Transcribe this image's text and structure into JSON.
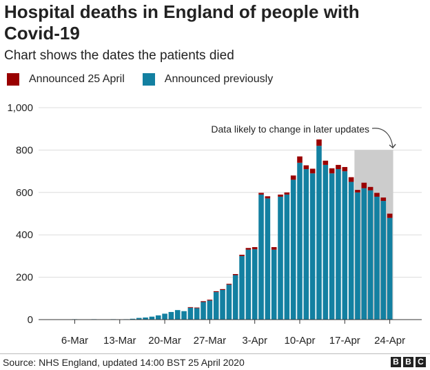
{
  "header": {
    "title": "Hospital deaths in England of people with Covid-19",
    "subtitle": "Chart shows the dates the patients died"
  },
  "footer": {
    "source": "Source: NHS England, updated 14:00 BST 25 April 2020",
    "logo_letters": [
      "B",
      "B",
      "C"
    ]
  },
  "colors": {
    "announced_25_april": "#990000",
    "announced_previously": "#1380a1",
    "highlight_band": "#cccccc"
  },
  "chart_data": {
    "type": "bar",
    "stacked": true,
    "grid": true,
    "legend_position": "top-left",
    "ylim": [
      0,
      1000
    ],
    "yticks": [
      0,
      200,
      400,
      600,
      800,
      1000
    ],
    "ytick_labels": [
      "0",
      "200",
      "400",
      "600",
      "800",
      "1,000"
    ],
    "xtick_labels": [
      "6-Mar",
      "13-Mar",
      "20-Mar",
      "27-Mar",
      "3-Apr",
      "10-Apr",
      "17-Apr",
      "24-Apr"
    ],
    "xtick_categories": [
      "6-Mar",
      "13-Mar",
      "20-Mar",
      "27-Mar",
      "3-Apr",
      "10-Apr",
      "17-Apr",
      "24-Apr"
    ],
    "categories": [
      "1-Mar",
      "2-Mar",
      "3-Mar",
      "4-Mar",
      "5-Mar",
      "6-Mar",
      "7-Mar",
      "8-Mar",
      "9-Mar",
      "10-Mar",
      "11-Mar",
      "12-Mar",
      "13-Mar",
      "14-Mar",
      "15-Mar",
      "16-Mar",
      "17-Mar",
      "18-Mar",
      "19-Mar",
      "20-Mar",
      "21-Mar",
      "22-Mar",
      "23-Mar",
      "24-Mar",
      "25-Mar",
      "26-Mar",
      "27-Mar",
      "28-Mar",
      "29-Mar",
      "30-Mar",
      "31-Mar",
      "1-Apr",
      "2-Apr",
      "3-Apr",
      "4-Apr",
      "5-Apr",
      "6-Apr",
      "7-Apr",
      "8-Apr",
      "9-Apr",
      "10-Apr",
      "11-Apr",
      "12-Apr",
      "13-Apr",
      "14-Apr",
      "15-Apr",
      "16-Apr",
      "17-Apr",
      "18-Apr",
      "19-Apr",
      "20-Apr",
      "21-Apr",
      "22-Apr",
      "23-Apr",
      "24-Apr"
    ],
    "series": [
      {
        "name": "Announced previously",
        "values": [
          0,
          0,
          0,
          0,
          0,
          2,
          1,
          1,
          2,
          0,
          1,
          2,
          0,
          2,
          4,
          8,
          10,
          14,
          20,
          28,
          36,
          45,
          40,
          56,
          54,
          83,
          90,
          130,
          140,
          165,
          210,
          300,
          330,
          332,
          590,
          572,
          330,
          580,
          590,
          660,
          740,
          710,
          690,
          820,
          730,
          690,
          710,
          700,
          650,
          600,
          620,
          610,
          580,
          560,
          480
        ]
      },
      {
        "name": "Announced 25 April",
        "values": [
          0,
          0,
          0,
          0,
          0,
          0,
          0,
          0,
          0,
          0,
          0,
          0,
          0,
          0,
          0,
          0,
          0,
          0,
          0,
          0,
          0,
          0,
          0,
          3,
          3,
          4,
          4,
          4,
          4,
          4,
          5,
          6,
          8,
          10,
          8,
          10,
          12,
          10,
          10,
          20,
          30,
          18,
          22,
          30,
          20,
          24,
          20,
          20,
          22,
          12,
          26,
          16,
          18,
          16,
          20
        ]
      }
    ],
    "annotation": "Data likely to change in later updates",
    "highlight_range": [
      "19-Apr",
      "24-Apr"
    ]
  }
}
